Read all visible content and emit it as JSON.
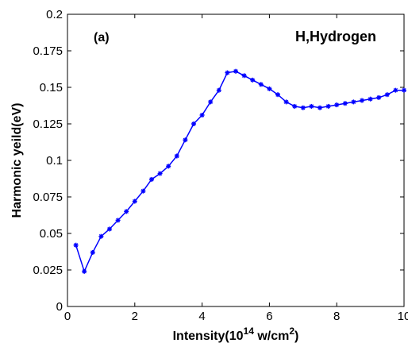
{
  "chart_data": {
    "type": "line",
    "panel_label": "(a)",
    "annotation": "H,Hydrogen",
    "xlabel": {
      "prefix": "Intensity(10",
      "exponent": "14",
      "middle": " w/cm",
      "unit_exponent": "2",
      "suffix": ")"
    },
    "ylabel": "Harmonic yeild(eV)",
    "xlim": [
      0,
      10
    ],
    "ylim": [
      0,
      0.2
    ],
    "xticks": [
      "0",
      "2",
      "4",
      "6",
      "8",
      "10"
    ],
    "xtick_values": [
      0,
      2,
      4,
      6,
      8,
      10
    ],
    "yticks": [
      "0",
      "0.025",
      "0.05",
      "0.075",
      "0.1",
      "0.125",
      "0.15",
      "0.175",
      "0.2"
    ],
    "ytick_values": [
      0,
      0.025,
      0.05,
      0.075,
      0.1,
      0.125,
      0.15,
      0.175,
      0.2
    ],
    "grid": false,
    "color": "#0000ff",
    "series": [
      {
        "x": [
          0.25,
          0.5,
          0.75,
          1.0,
          1.25,
          1.5,
          1.75,
          2.0,
          2.25,
          2.5,
          2.75,
          3.0,
          3.25,
          3.5,
          3.75,
          4.0,
          4.25,
          4.5,
          4.75,
          5.0,
          5.25,
          5.5,
          5.75,
          6.0,
          6.25,
          6.5,
          6.75,
          7.0,
          7.25,
          7.5,
          7.75,
          8.0,
          8.25,
          8.5,
          8.75,
          9.0,
          9.25,
          9.5,
          9.75,
          10.0
        ],
        "y": [
          0.042,
          0.024,
          0.037,
          0.048,
          0.053,
          0.059,
          0.065,
          0.072,
          0.079,
          0.087,
          0.091,
          0.096,
          0.103,
          0.114,
          0.125,
          0.131,
          0.14,
          0.148,
          0.16,
          0.161,
          0.158,
          0.155,
          0.152,
          0.149,
          0.145,
          0.14,
          0.137,
          0.136,
          0.137,
          0.136,
          0.137,
          0.138,
          0.139,
          0.14,
          0.141,
          0.142,
          0.143,
          0.145,
          0.148,
          0.148
        ]
      }
    ]
  }
}
